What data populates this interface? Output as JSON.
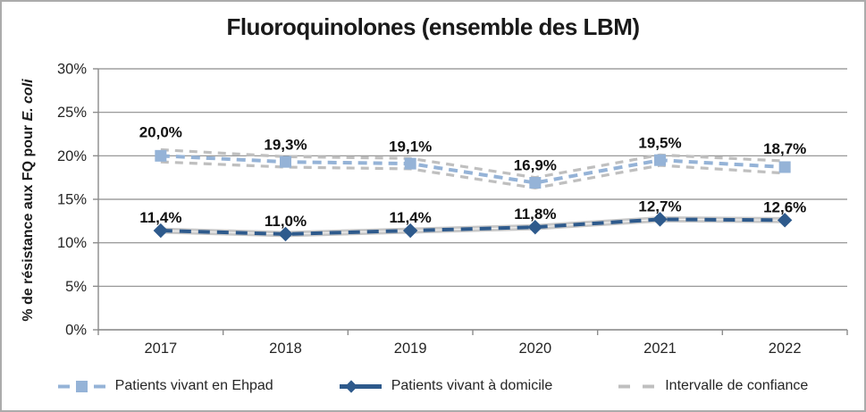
{
  "title": "Fluoroquinolones (ensemble des LBM)",
  "y_axis_title": {
    "main": "% de résistance aux FQ pour ",
    "italic": "E. coli"
  },
  "colors": {
    "ehpad_line": "#95B3D7",
    "domicile_line": "#2E5A8C",
    "confidence": "#BFBFBF",
    "domicile_ci": "#C8C8C8",
    "grid": "#8C8C8C",
    "text": "#262626",
    "label_text": "#111111"
  },
  "chart_data": {
    "type": "line",
    "title": "Fluoroquinolones (ensemble des LBM)",
    "categories": [
      "2017",
      "2018",
      "2019",
      "2020",
      "2021",
      "2022"
    ],
    "series": [
      {
        "name": "Patients vivant en Ehpad",
        "values": [
          20.0,
          19.3,
          19.1,
          16.9,
          19.5,
          18.7
        ],
        "labels": [
          "20,0%",
          "19,3%",
          "19,1%",
          "16,9%",
          "19,5%",
          "18,7%"
        ],
        "marker": "square",
        "line_style": "dashed"
      },
      {
        "name": "Patients vivant à domicile",
        "values": [
          11.4,
          11.0,
          11.4,
          11.8,
          12.7,
          12.6
        ],
        "labels": [
          "11,4%",
          "11,0%",
          "11,4%",
          "11,8%",
          "12,7%",
          "12,6%"
        ],
        "marker": "diamond",
        "line_style": "dashed"
      }
    ],
    "confidence_intervals": {
      "ehpad": {
        "upper": [
          20.7,
          19.9,
          19.7,
          17.5,
          20.1,
          19.4
        ],
        "lower": [
          19.3,
          18.7,
          18.5,
          16.3,
          18.9,
          18.0
        ]
      },
      "domicile": {
        "upper": [
          11.6,
          11.2,
          11.6,
          12.0,
          12.9,
          12.8
        ],
        "lower": [
          11.2,
          10.8,
          11.2,
          11.6,
          12.5,
          12.4
        ]
      }
    },
    "ci_label": "Intervalle de confiance",
    "ylabel": "% de résistance aux FQ pour E. coli",
    "xlabel": "",
    "ylim": [
      0,
      30
    ],
    "yticks": [
      {
        "value": 0,
        "label": "0%"
      },
      {
        "value": 5,
        "label": "5%"
      },
      {
        "value": 10,
        "label": "10%"
      },
      {
        "value": 15,
        "label": "15%"
      },
      {
        "value": 20,
        "label": "20%"
      },
      {
        "value": 25,
        "label": "25%"
      },
      {
        "value": 30,
        "label": "30%"
      }
    ],
    "grid": true,
    "legend_position": "bottom"
  }
}
